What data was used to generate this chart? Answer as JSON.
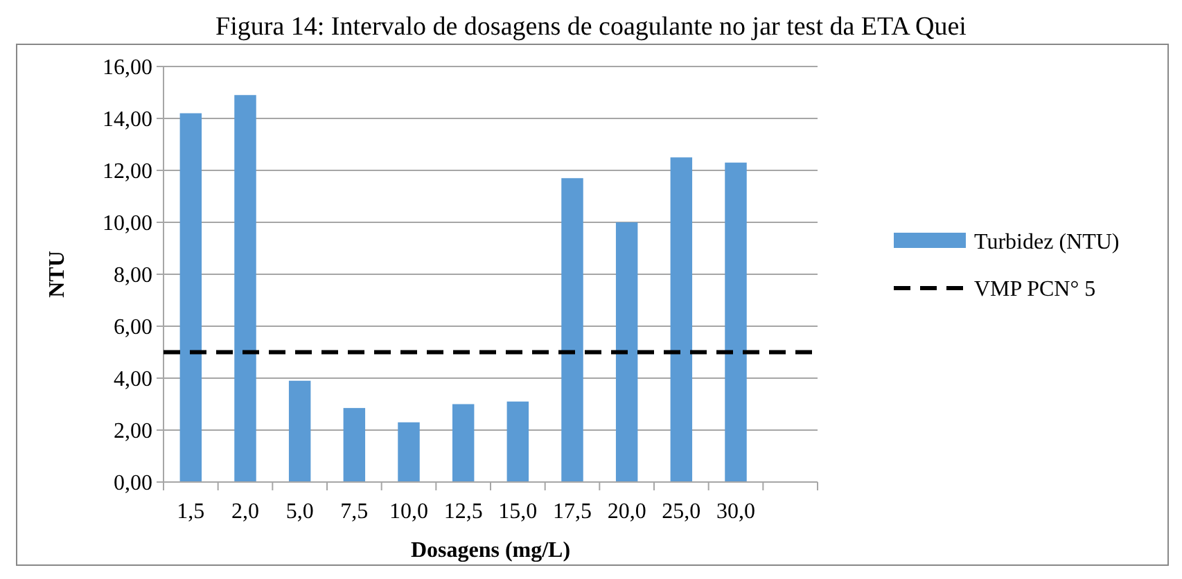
{
  "chart_data": {
    "type": "bar",
    "title": "Figura 14: Intervalo de dosagens de coagulante no jar test da ETA Quei",
    "xlabel": "Dosagens (mg/L)",
    "ylabel": "NTU",
    "categories": [
      "1,5",
      "2,0",
      "5,0",
      "7,5",
      "10,0",
      "12,5",
      "15,0",
      "17,5",
      "20,0",
      "25,0",
      "30,0",
      null
    ],
    "series": [
      {
        "name": "Turbidez (NTU)",
        "color": "#5b9bd5",
        "values": [
          14.2,
          14.9,
          3.9,
          2.85,
          2.3,
          3.0,
          3.1,
          11.7,
          10.0,
          12.5,
          12.3,
          null
        ]
      }
    ],
    "ylim": [
      0,
      16
    ],
    "yticks": [
      {
        "value": 0,
        "label": "0,00"
      },
      {
        "value": 2,
        "label": "2,00"
      },
      {
        "value": 4,
        "label": "4,00"
      },
      {
        "value": 6,
        "label": "6,00"
      },
      {
        "value": 8,
        "label": "8,00"
      },
      {
        "value": 10,
        "label": "10,00"
      },
      {
        "value": 12,
        "label": "12,00"
      },
      {
        "value": 14,
        "label": "14,00"
      },
      {
        "value": 16,
        "label": "16,00"
      }
    ],
    "ref_lines": [
      {
        "axis": "y",
        "value": 5,
        "label": "VMP PCN° 5",
        "color": "#000000",
        "line_style": "dashed"
      }
    ],
    "grid": "y",
    "legend": "right"
  }
}
